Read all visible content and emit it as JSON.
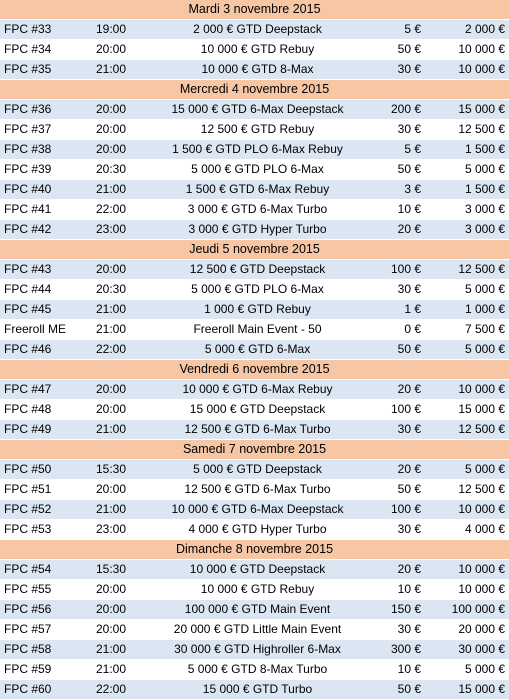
{
  "sections": [
    {
      "day": "Mardi 3 novembre 2015",
      "events": [
        {
          "id": "FPC #33",
          "time": "19:00",
          "name": "2 000 € GTD Deepstack",
          "buyin": "5 €",
          "prize": "2 000 €"
        },
        {
          "id": "FPC #34",
          "time": "20:00",
          "name": "10 000 € GTD Rebuy",
          "buyin": "50 €",
          "prize": "10 000 €"
        },
        {
          "id": "FPC #35",
          "time": "21:00",
          "name": "10 000 € GTD 8-Max",
          "buyin": "30 €",
          "prize": "10 000 €"
        }
      ]
    },
    {
      "day": "Mercredi 4 novembre 2015",
      "events": [
        {
          "id": "FPC #36",
          "time": "20:00",
          "name": "15 000 € GTD 6-Max Deepstack",
          "buyin": "200 €",
          "prize": "15 000 €"
        },
        {
          "id": "FPC #37",
          "time": "20:00",
          "name": "12 500 € GTD Rebuy",
          "buyin": "30 €",
          "prize": "12 500 €"
        },
        {
          "id": "FPC #38",
          "time": "20:00",
          "name": "1 500 € GTD PLO 6-Max Rebuy",
          "buyin": "5 €",
          "prize": "1 500 €"
        },
        {
          "id": "FPC #39",
          "time": "20:30",
          "name": "5 000 € GTD PLO 6-Max",
          "buyin": "50 €",
          "prize": "5 000 €"
        },
        {
          "id": "FPC #40",
          "time": "21:00",
          "name": "1 500 € GTD 6-Max Rebuy",
          "buyin": "3 €",
          "prize": "1 500 €"
        },
        {
          "id": "FPC #41",
          "time": "22:00",
          "name": "3 000 € GTD 6-Max Turbo",
          "buyin": "10 €",
          "prize": "3 000 €"
        },
        {
          "id": "FPC #42",
          "time": "23:00",
          "name": "3 000 € GTD Hyper Turbo",
          "buyin": "20 €",
          "prize": "3 000 €"
        }
      ]
    },
    {
      "day": "Jeudi 5 novembre 2015",
      "events": [
        {
          "id": "FPC #43",
          "time": "20:00",
          "name": "12 500 € GTD Deepstack",
          "buyin": "100 €",
          "prize": "12 500 €"
        },
        {
          "id": "FPC #44",
          "time": "20:30",
          "name": "5 000 € GTD PLO 6-Max",
          "buyin": "30 €",
          "prize": "5 000 €"
        },
        {
          "id": "FPC #45",
          "time": "21:00",
          "name": "1 000 € GTD Rebuy",
          "buyin": "1 €",
          "prize": "1 000 €"
        },
        {
          "id": "Freeroll ME",
          "time": "21:00",
          "name": "Freeroll Main Event - 50",
          "buyin": "0 €",
          "prize": "7 500 €"
        },
        {
          "id": "FPC #46",
          "time": "22:00",
          "name": "5 000 € GTD 6-Max",
          "buyin": "50 €",
          "prize": "5 000 €"
        }
      ]
    },
    {
      "day": "Vendredi 6 novembre 2015",
      "events": [
        {
          "id": "FPC #47",
          "time": "20:00",
          "name": "10 000 € GTD 6-Max Rebuy",
          "buyin": "20 €",
          "prize": "10 000 €"
        },
        {
          "id": "FPC #48",
          "time": "20:00",
          "name": "15 000 € GTD Deepstack",
          "buyin": "100 €",
          "prize": "15 000 €"
        },
        {
          "id": "FPC #49",
          "time": "21:00",
          "name": "12 500 € GTD 6-Max Turbo",
          "buyin": "30 €",
          "prize": "12 500 €"
        }
      ]
    },
    {
      "day": "Samedi 7 novembre 2015",
      "events": [
        {
          "id": "FPC #50",
          "time": "15:30",
          "name": "5 000 € GTD Deepstack",
          "buyin": "20 €",
          "prize": "5 000 €"
        },
        {
          "id": "FPC #51",
          "time": "20:00",
          "name": "12 500 € GTD 6-Max Turbo",
          "buyin": "50 €",
          "prize": "12 500 €"
        },
        {
          "id": "FPC #52",
          "time": "21:00",
          "name": "10 000 € GTD 6-Max Deepstack",
          "buyin": "100 €",
          "prize": "10 000 €"
        },
        {
          "id": "FPC #53",
          "time": "23:00",
          "name": "4 000 € GTD Hyper Turbo",
          "buyin": "30 €",
          "prize": "4 000 €"
        }
      ]
    },
    {
      "day": "Dimanche 8 novembre 2015",
      "events": [
        {
          "id": "FPC #54",
          "time": "15:30",
          "name": "10 000 € GTD Deepstack",
          "buyin": "20 €",
          "prize": "10 000 €"
        },
        {
          "id": "FPC #55",
          "time": "20:00",
          "name": "10 000 € GTD Rebuy",
          "buyin": "10 €",
          "prize": "10 000 €"
        },
        {
          "id": "FPC #56",
          "time": "20:00",
          "name": "100 000 € GTD Main Event",
          "buyin": "150 €",
          "prize": "100 000 €"
        },
        {
          "id": "FPC #57",
          "time": "20:00",
          "name": "20 000 € GTD Little Main Event",
          "buyin": "30 €",
          "prize": "20 000 €"
        },
        {
          "id": "FPC #58",
          "time": "21:00",
          "name": "30 000 € GTD Highroller 6-Max",
          "buyin": "300 €",
          "prize": "30 000 €"
        },
        {
          "id": "FPC #59",
          "time": "21:00",
          "name": "5 000 € GTD 8-Max Turbo",
          "buyin": "10 €",
          "prize": "5 000 €"
        },
        {
          "id": "FPC #60",
          "time": "22:00",
          "name": "15 000 € GTD Turbo",
          "buyin": "50 €",
          "prize": "15 000 €"
        }
      ]
    }
  ]
}
